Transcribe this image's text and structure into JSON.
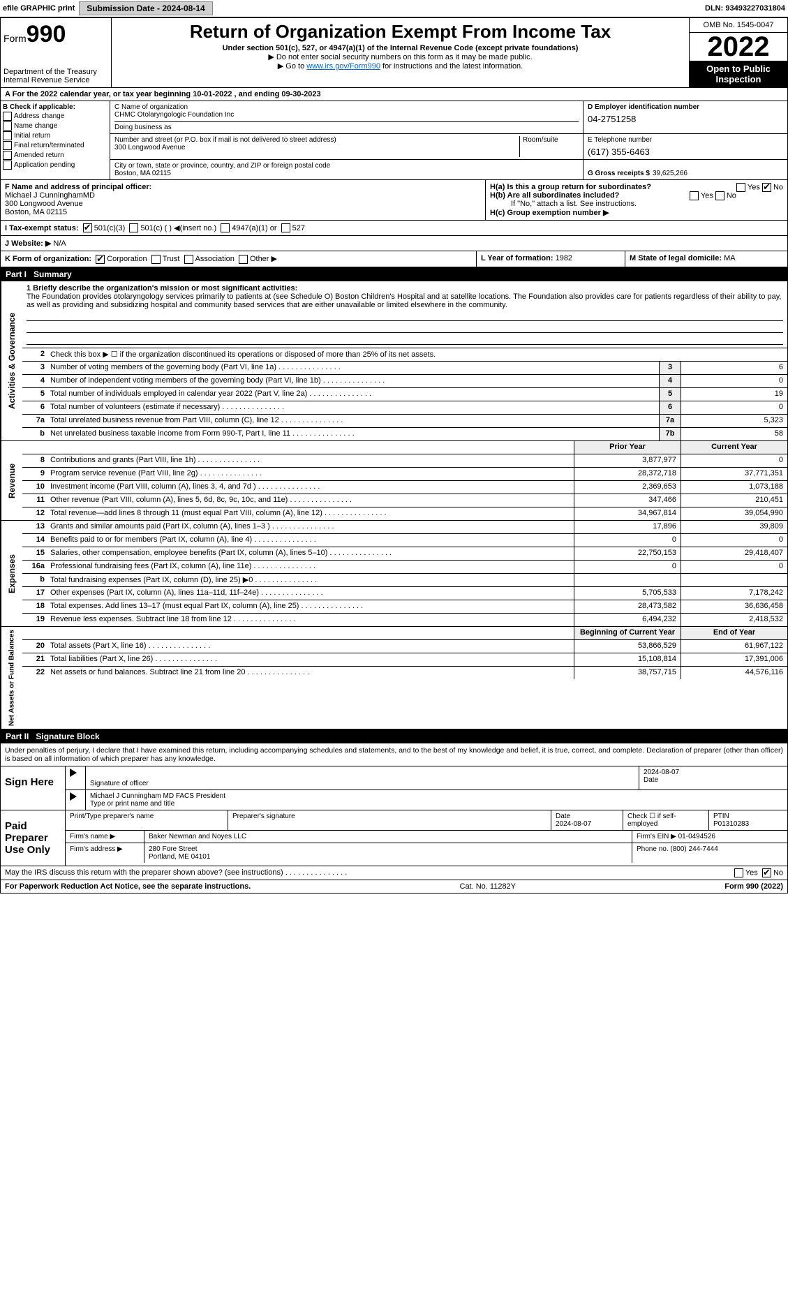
{
  "efile": {
    "label": "efile GRAPHIC print",
    "submission_label": "Submission Date - 2024-08-14",
    "dln": "DLN: 93493227031804"
  },
  "header": {
    "form_prefix": "Form",
    "form_number": "990",
    "dept": "Department of the Treasury",
    "irs": "Internal Revenue Service",
    "title": "Return of Organization Exempt From Income Tax",
    "subtitle": "Under section 501(c), 527, or 4947(a)(1) of the Internal Revenue Code (except private foundations)",
    "note1": "▶ Do not enter social security numbers on this form as it may be made public.",
    "note2_pre": "▶ Go to ",
    "note2_link": "www.irs.gov/Form990",
    "note2_post": " for instructions and the latest information.",
    "omb": "OMB No. 1545-0047",
    "year": "2022",
    "open": "Open to Public Inspection"
  },
  "line_a": "For the 2022 calendar year, or tax year beginning 10-01-2022    , and ending 09-30-2023",
  "box_b": {
    "title": "B Check if applicable:",
    "opts": [
      "Address change",
      "Name change",
      "Initial return",
      "Final return/terminated",
      "Amended return",
      "Application pending"
    ]
  },
  "box_c": {
    "label_name": "C Name of organization",
    "name": "CHMC Otolaryngologic Foundation Inc",
    "dba_label": "Doing business as",
    "dba": "",
    "street_label": "Number and street (or P.O. box if mail is not delivered to street address)",
    "room_label": "Room/suite",
    "street": "300 Longwood Avenue",
    "city_label": "City or town, state or province, country, and ZIP or foreign postal code",
    "city": "Boston, MA  02115"
  },
  "box_d": {
    "label": "D Employer identification number",
    "value": "04-2751258"
  },
  "box_e": {
    "label": "E Telephone number",
    "value": "(617) 355-6463"
  },
  "box_g": {
    "label": "G Gross receipts $",
    "value": "39,625,266"
  },
  "box_f": {
    "label": "F  Name and address of principal officer:",
    "name": "Michael J CunninghamMD",
    "addr1": "300 Longwood Avenue",
    "addr2": "Boston, MA  02115"
  },
  "box_h": {
    "a": "H(a)  Is this a group return for subordinates?",
    "a_yes": "Yes",
    "a_no": "No",
    "b": "H(b)  Are all subordinates included?",
    "b_note": "If \"No,\" attach a list. See instructions.",
    "c": "H(c)  Group exemption number ▶"
  },
  "box_i": {
    "label": "I   Tax-exempt status:",
    "o501c3": "501(c)(3)",
    "o501c": "501(c) (  ) ◀(insert no.)",
    "o4947": "4947(a)(1) or",
    "o527": "527"
  },
  "box_j": {
    "label": "J   Website: ▶",
    "value": "N/A"
  },
  "box_k": {
    "label": "K Form of organization:",
    "opts": [
      "Corporation",
      "Trust",
      "Association",
      "Other ▶"
    ]
  },
  "box_l": {
    "label": "L Year of formation:",
    "value": "1982"
  },
  "box_m": {
    "label": "M State of legal domicile:",
    "value": "MA"
  },
  "part1": {
    "num": "Part I",
    "title": "Summary"
  },
  "mission": {
    "label": "1   Briefly describe the organization's mission or most significant activities:",
    "text": "The Foundation provides otolaryngology services primarily to patients at (see Schedule O) Boston Children's Hospital and at satellite locations. The Foundation also provides care for patients regardless of their ability to pay, as well as providing and subsidizing hospital and community based services that are either unavailable or limited elsewhere in the community."
  },
  "line2": "Check this box ▶ ☐  if the organization discontinued its operations or disposed of more than 25% of its net assets.",
  "gov_rows": [
    {
      "n": "3",
      "d": "Number of voting members of the governing body (Part VI, line 1a)",
      "box": "3",
      "v": "6"
    },
    {
      "n": "4",
      "d": "Number of independent voting members of the governing body (Part VI, line 1b)",
      "box": "4",
      "v": "0"
    },
    {
      "n": "5",
      "d": "Total number of individuals employed in calendar year 2022 (Part V, line 2a)",
      "box": "5",
      "v": "19"
    },
    {
      "n": "6",
      "d": "Total number of volunteers (estimate if necessary)",
      "box": "6",
      "v": "0"
    },
    {
      "n": "7a",
      "d": "Total unrelated business revenue from Part VIII, column (C), line 12",
      "box": "7a",
      "v": "5,323"
    },
    {
      "n": "b",
      "d": "Net unrelated business taxable income from Form 990-T, Part I, line 11",
      "box": "7b",
      "v": "58"
    }
  ],
  "col_hdrs": {
    "prior": "Prior Year",
    "current": "Current Year"
  },
  "rev_rows": [
    {
      "n": "8",
      "d": "Contributions and grants (Part VIII, line 1h)",
      "p": "3,877,977",
      "c": "0"
    },
    {
      "n": "9",
      "d": "Program service revenue (Part VIII, line 2g)",
      "p": "28,372,718",
      "c": "37,771,351"
    },
    {
      "n": "10",
      "d": "Investment income (Part VIII, column (A), lines 3, 4, and 7d )",
      "p": "2,369,653",
      "c": "1,073,188"
    },
    {
      "n": "11",
      "d": "Other revenue (Part VIII, column (A), lines 5, 6d, 8c, 9c, 10c, and 11e)",
      "p": "347,466",
      "c": "210,451"
    },
    {
      "n": "12",
      "d": "Total revenue—add lines 8 through 11 (must equal Part VIII, column (A), line 12)",
      "p": "34,967,814",
      "c": "39,054,990"
    }
  ],
  "exp_rows": [
    {
      "n": "13",
      "d": "Grants and similar amounts paid (Part IX, column (A), lines 1–3 )",
      "p": "17,896",
      "c": "39,809"
    },
    {
      "n": "14",
      "d": "Benefits paid to or for members (Part IX, column (A), line 4)",
      "p": "0",
      "c": "0"
    },
    {
      "n": "15",
      "d": "Salaries, other compensation, employee benefits (Part IX, column (A), lines 5–10)",
      "p": "22,750,153",
      "c": "29,418,407"
    },
    {
      "n": "16a",
      "d": "Professional fundraising fees (Part IX, column (A), line 11e)",
      "p": "0",
      "c": "0"
    },
    {
      "n": "b",
      "d": "Total fundraising expenses (Part IX, column (D), line 25) ▶0",
      "p": "",
      "c": ""
    },
    {
      "n": "17",
      "d": "Other expenses (Part IX, column (A), lines 11a–11d, 11f–24e)",
      "p": "5,705,533",
      "c": "7,178,242"
    },
    {
      "n": "18",
      "d": "Total expenses. Add lines 13–17 (must equal Part IX, column (A), line 25)",
      "p": "28,473,582",
      "c": "36,636,458"
    },
    {
      "n": "19",
      "d": "Revenue less expenses. Subtract line 18 from line 12",
      "p": "6,494,232",
      "c": "2,418,532"
    }
  ],
  "na_hdrs": {
    "begin": "Beginning of Current Year",
    "end": "End of Year"
  },
  "na_rows": [
    {
      "n": "20",
      "d": "Total assets (Part X, line 16)",
      "p": "53,866,529",
      "c": "61,967,122"
    },
    {
      "n": "21",
      "d": "Total liabilities (Part X, line 26)",
      "p": "15,108,814",
      "c": "17,391,006"
    },
    {
      "n": "22",
      "d": "Net assets or fund balances. Subtract line 21 from line 20",
      "p": "38,757,715",
      "c": "44,576,116"
    }
  ],
  "part2": {
    "num": "Part II",
    "title": "Signature Block"
  },
  "sig": {
    "declaration": "Under penalties of perjury, I declare that I have examined this return, including accompanying schedules and statements, and to the best of my knowledge and belief, it is true, correct, and complete. Declaration of preparer (other than officer) is based on all information of which preparer has any knowledge.",
    "sign_here": "Sign Here",
    "sig_officer": "Signature of officer",
    "date1": "2024-08-07",
    "officer_name": "Michael J Cunningham MD FACS  President",
    "type_name": "Type or print name and title",
    "paid": "Paid Preparer Use Only",
    "prep_name_label": "Print/Type preparer's name",
    "prep_sig_label": "Preparer's signature",
    "date_label": "Date",
    "date2": "2024-08-07",
    "check_self": "Check ☐ if self-employed",
    "ptin_label": "PTIN",
    "ptin": "P01310283",
    "firm_name_label": "Firm's name    ▶",
    "firm_name": "Baker Newman and Noyes LLC",
    "firm_ein_label": "Firm's EIN ▶",
    "firm_ein": "01-0494526",
    "firm_addr_label": "Firm's address ▶",
    "firm_addr1": "280 Fore Street",
    "firm_addr2": "Portland, ME  04101",
    "phone_label": "Phone no.",
    "phone": "(800) 244-7444",
    "discuss": "May the IRS discuss this return with the preparer shown above? (see instructions)",
    "yes": "Yes",
    "no": "No"
  },
  "footer": {
    "left": "For Paperwork Reduction Act Notice, see the separate instructions.",
    "mid": "Cat. No. 11282Y",
    "right": "Form 990 (2022)"
  },
  "side_labels": {
    "gov": "Activities & Governance",
    "rev": "Revenue",
    "exp": "Expenses",
    "na": "Net Assets or Fund Balances"
  }
}
